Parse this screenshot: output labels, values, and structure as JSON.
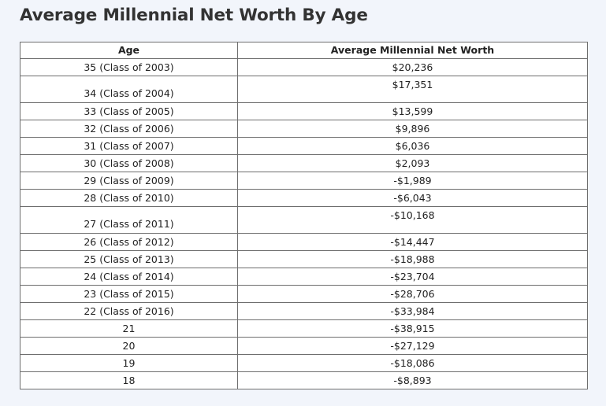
{
  "title": "Average Millennial Net Worth By Age",
  "table": {
    "headers": [
      "Age",
      "Average Millennial Net Worth"
    ],
    "rows": [
      {
        "age": "35 (Class of 2003)",
        "worth": "$20,236",
        "tall": false
      },
      {
        "age": "34 (Class of 2004)",
        "worth": "$17,351",
        "tall": true
      },
      {
        "age": "33 (Class of 2005)",
        "worth": "$13,599",
        "tall": false
      },
      {
        "age": "32 (Class of 2006)",
        "worth": "$9,896",
        "tall": false
      },
      {
        "age": "31 (Class of 2007)",
        "worth": "$6,036",
        "tall": false
      },
      {
        "age": "30 (Class of 2008)",
        "worth": "$2,093",
        "tall": false
      },
      {
        "age": "29 (Class of 2009)",
        "worth": "-$1,989",
        "tall": false
      },
      {
        "age": "28 (Class of 2010)",
        "worth": "-$6,043",
        "tall": false
      },
      {
        "age": "27 (Class of 2011)",
        "worth": "-$10,168",
        "tall": true
      },
      {
        "age": "26 (Class of 2012)",
        "worth": "-$14,447",
        "tall": false
      },
      {
        "age": "25 (Class of 2013)",
        "worth": "-$18,988",
        "tall": false
      },
      {
        "age": "24 (Class of 2014)",
        "worth": "-$23,704",
        "tall": false
      },
      {
        "age": "23 (Class of 2015)",
        "worth": "-$28,706",
        "tall": false
      },
      {
        "age": "22 (Class of 2016)",
        "worth": "-$33,984",
        "tall": false
      },
      {
        "age": "21",
        "worth": "-$38,915",
        "tall": false
      },
      {
        "age": "20",
        "worth": "-$27,129",
        "tall": false
      },
      {
        "age": "19",
        "worth": "-$18,086",
        "tall": false
      },
      {
        "age": "18",
        "worth": "-$8,893",
        "tall": false
      }
    ]
  }
}
